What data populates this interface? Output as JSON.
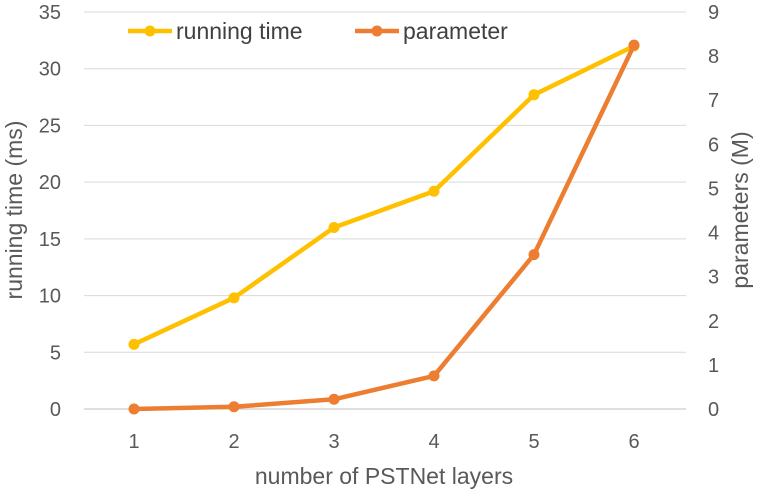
{
  "chart_data": {
    "type": "line",
    "x": [
      1,
      2,
      3,
      4,
      5,
      6
    ],
    "xlabel": "number of PSTNet layers",
    "ylabel_left": "running time (ms)",
    "ylabel_right": "parameters (M)",
    "ylim_left": [
      0,
      35
    ],
    "ylim_right": [
      0,
      9
    ],
    "yticks_left": [
      0,
      5,
      10,
      15,
      20,
      25,
      30,
      35
    ],
    "yticks_right": [
      0,
      1,
      2,
      3,
      4,
      5,
      6,
      7,
      8,
      9
    ],
    "grid": true,
    "legend_position": "top",
    "series": [
      {
        "name": "running time",
        "axis": "left",
        "color": "#FFC000",
        "values": [
          5.7,
          9.8,
          16.0,
          19.2,
          27.7,
          32.0
        ]
      },
      {
        "name": "parameter",
        "axis": "right",
        "color": "#ED7D31",
        "values": [
          0.0,
          0.05,
          0.22,
          0.75,
          3.5,
          8.25
        ]
      }
    ]
  }
}
